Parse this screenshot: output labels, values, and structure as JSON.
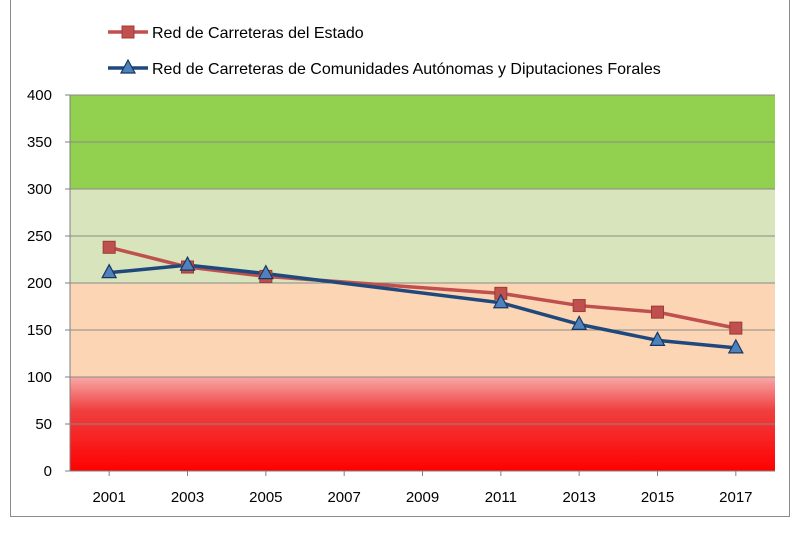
{
  "chart_data": {
    "type": "line",
    "title": "",
    "xlabel": "",
    "ylabel": "",
    "categories": [
      "2001",
      "2003",
      "2005",
      "2007",
      "2009",
      "2011",
      "2013",
      "2015",
      "2017"
    ],
    "ylim": [
      0,
      400
    ],
    "yticks": [
      "0",
      "50",
      "100",
      "150",
      "200",
      "250",
      "300",
      "350",
      "400"
    ],
    "grid": true,
    "legend_position": "top",
    "bands": [
      {
        "from": 300,
        "to": 400,
        "color": "#92d050"
      },
      {
        "from": 200,
        "to": 300,
        "color": "#d8e4bc"
      },
      {
        "from": 100,
        "to": 200,
        "color": "#fcd5b4"
      },
      {
        "from": 0,
        "to": 100,
        "color": "#ff0000"
      }
    ],
    "series": [
      {
        "name": "Red de Carreteras del Estado",
        "color": "#c0504d",
        "marker": "square",
        "points": [
          {
            "x": "2001",
            "y": 238
          },
          {
            "x": "2003",
            "y": 217
          },
          {
            "x": "2005",
            "y": 207
          },
          {
            "x": "2011",
            "y": 189
          },
          {
            "x": "2013",
            "y": 176
          },
          {
            "x": "2015",
            "y": 169
          },
          {
            "x": "2017",
            "y": 152
          }
        ]
      },
      {
        "name": "Red de Carreteras de Comunidades Autónomas y Diputaciones Forales",
        "color": "#1f497d",
        "marker": "triangle",
        "points": [
          {
            "x": "2001",
            "y": 211
          },
          {
            "x": "2003",
            "y": 219
          },
          {
            "x": "2005",
            "y": 210
          },
          {
            "x": "2011",
            "y": 179
          },
          {
            "x": "2013",
            "y": 156
          },
          {
            "x": "2015",
            "y": 139
          },
          {
            "x": "2017",
            "y": 131
          }
        ]
      }
    ]
  }
}
